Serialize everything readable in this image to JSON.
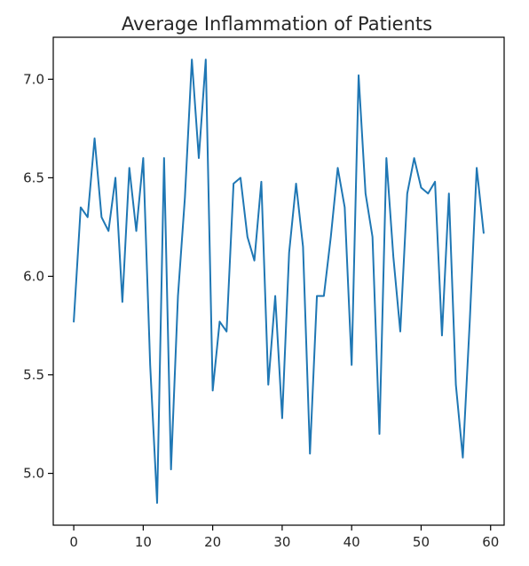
{
  "chart_data": {
    "type": "line",
    "title": "Average Inflammation of Patients",
    "xlabel": "",
    "ylabel": "",
    "xlim": [
      -2.95,
      61.95
    ],
    "ylim": [
      4.737,
      7.213
    ],
    "x_ticks": [
      0,
      10,
      20,
      30,
      40,
      50,
      60
    ],
    "x_tick_labels": [
      "0",
      "10",
      "20",
      "30",
      "40",
      "50",
      "60"
    ],
    "y_ticks": [
      5.0,
      5.5,
      6.0,
      6.5,
      7.0
    ],
    "y_tick_labels": [
      "5.0",
      "5.5",
      "6.0",
      "6.5",
      "7.0"
    ],
    "grid": false,
    "line_color": "#1f77b4",
    "x": [
      0,
      1,
      2,
      3,
      4,
      5,
      6,
      7,
      8,
      9,
      10,
      11,
      12,
      13,
      14,
      15,
      16,
      17,
      18,
      19,
      20,
      21,
      22,
      23,
      24,
      25,
      26,
      27,
      28,
      29,
      30,
      31,
      32,
      33,
      34,
      35,
      36,
      37,
      38,
      39,
      40,
      41,
      42,
      43,
      44,
      45,
      46,
      47,
      48,
      49,
      50,
      51,
      52,
      53,
      54,
      55,
      56,
      57,
      58,
      59
    ],
    "values": [
      5.77,
      6.35,
      6.3,
      6.7,
      6.3,
      6.23,
      6.5,
      5.87,
      6.55,
      6.23,
      6.6,
      5.55,
      4.85,
      6.6,
      5.02,
      5.9,
      6.4,
      7.1,
      6.6,
      7.1,
      5.42,
      5.77,
      5.72,
      6.47,
      6.5,
      6.2,
      6.08,
      6.48,
      5.45,
      5.9,
      5.28,
      6.12,
      6.47,
      6.15,
      5.1,
      5.9,
      5.9,
      6.2,
      6.55,
      6.35,
      5.55,
      7.02,
      6.42,
      6.2,
      5.2,
      6.6,
      6.1,
      5.72,
      6.42,
      6.6,
      6.45,
      6.42,
      6.48,
      5.7,
      6.42,
      5.45,
      5.08,
      5.77,
      6.55,
      6.22
    ]
  }
}
